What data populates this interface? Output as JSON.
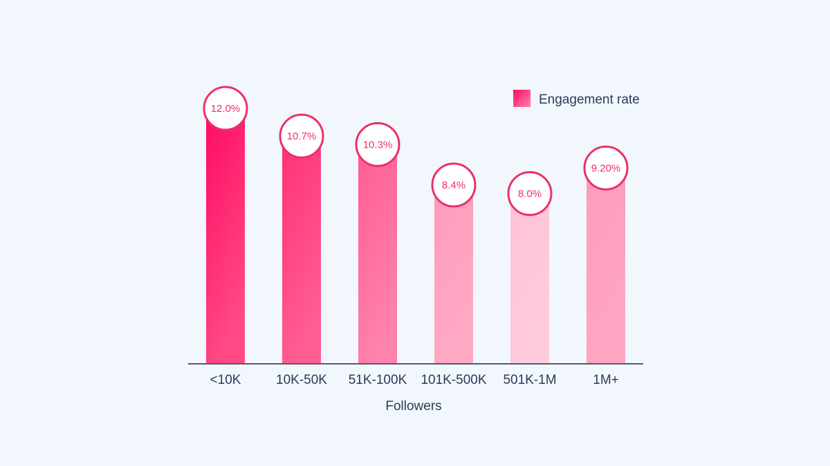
{
  "chart_data": {
    "type": "bar",
    "categories": [
      "<10K",
      "10K-50K",
      "51K-100K",
      "101K-500K",
      "501K-1M",
      "1M+"
    ],
    "series": [
      {
        "name": "Engagement rate",
        "values": [
          12.0,
          10.7,
          10.3,
          8.4,
          8.0,
          9.2
        ],
        "labels": [
          "12.0%",
          "10.7%",
          "10.3%",
          "8.4%",
          "8.0%",
          "9.20%"
        ],
        "colors": [
          [
            "#ff0a63",
            "#ff4a85"
          ],
          [
            "#ff2f77",
            "#ff5e92"
          ],
          [
            "#ff5b92",
            "#ff82ac"
          ],
          [
            "#ff9bbb",
            "#ffa9c4"
          ],
          [
            "#ffc2d7",
            "#ffccdd"
          ],
          [
            "#ff9bbb",
            "#ffa6c2"
          ]
        ]
      }
    ],
    "xlabel": "Followers",
    "ylabel": "",
    "ylim": [
      0,
      13
    ],
    "grid": false,
    "legend": "top-right",
    "accent_color": "#ec2f6a",
    "axis_color": "#555b66",
    "text_color": "#2d3a55",
    "background": "#f1f7fd"
  }
}
